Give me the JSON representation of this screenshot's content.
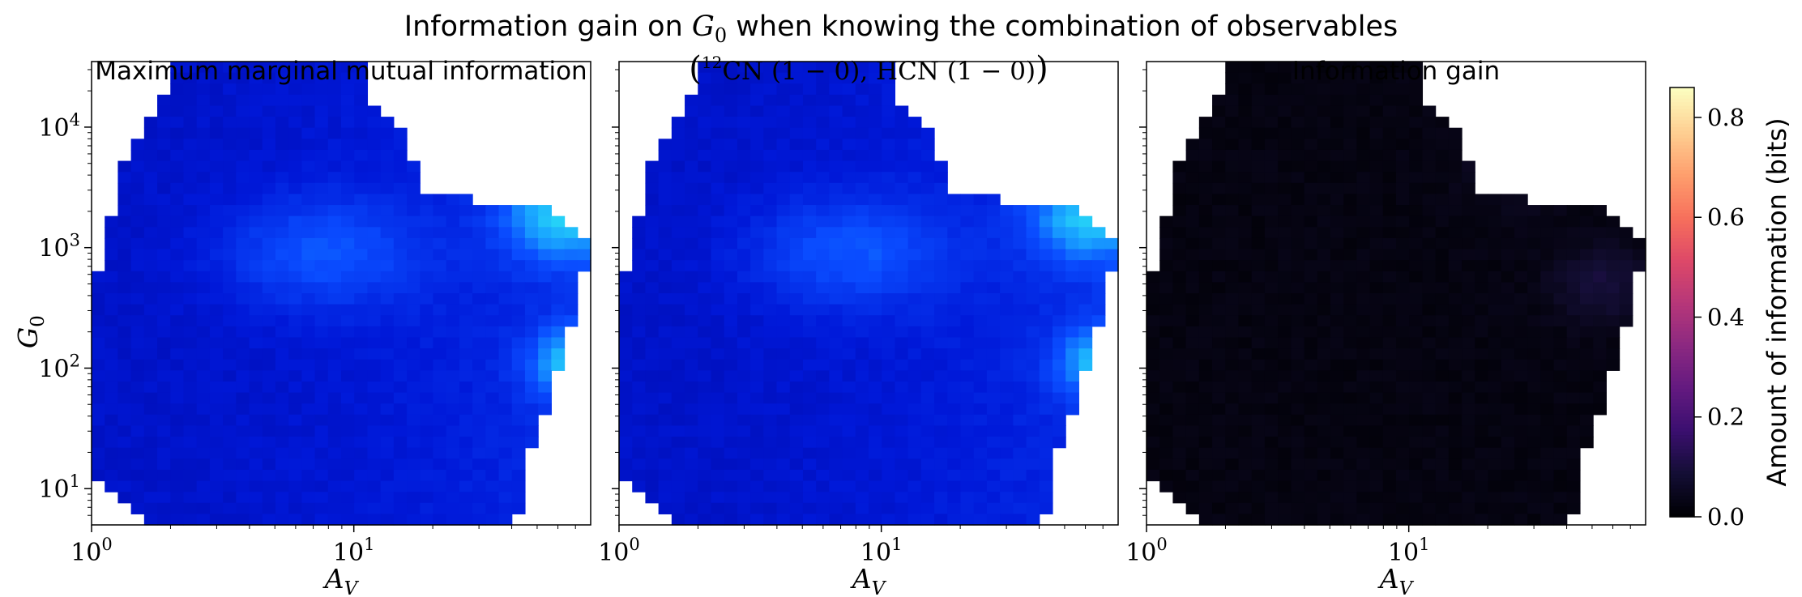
{
  "figure": {
    "suptitle": "Information gain on G0 when knowing the combination of observables"
  },
  "colors": {
    "mi_map": [
      "#00008a",
      "#0018d8",
      "#0a4cff",
      "#1aa8ff",
      "#2ef0f2"
    ],
    "gain_map": [
      "#000004",
      "#140e36",
      "#3b0f70",
      "#641a80",
      "#8c2981",
      "#b73779",
      "#de4968",
      "#f7705c",
      "#fe9f6d",
      "#fecf92",
      "#fcfdbf"
    ]
  },
  "chart_data": [
    {
      "type": "heatmap",
      "title": "Maximum marginal mutual information",
      "xlabel": "A_V",
      "ylabel": "G_0",
      "xscale": "log",
      "yscale": "log",
      "xlim": [
        1,
        80
      ],
      "ylim": [
        5,
        35000
      ],
      "xticks": [
        {
          "v": 1,
          "label": "10^0"
        },
        {
          "v": 10,
          "label": "10^1"
        }
      ],
      "yticks": [
        {
          "v": 10,
          "label": "10^1"
        },
        {
          "v": 100,
          "label": "10^2"
        },
        {
          "v": 1000,
          "label": "10^3"
        },
        {
          "v": 10000,
          "label": "10^4"
        }
      ],
      "colormap": "blue-cyan",
      "value_range": [
        0,
        0.86
      ],
      "grid": false
    },
    {
      "type": "heatmap",
      "title": "(12CN (1 − 0), HCN (1 − 0))",
      "xlabel": "A_V",
      "ylabel": "",
      "xscale": "log",
      "yscale": "log",
      "xlim": [
        1,
        80
      ],
      "ylim": [
        5,
        35000
      ],
      "xticks": [
        {
          "v": 1,
          "label": "10^0"
        },
        {
          "v": 10,
          "label": "10^1"
        }
      ],
      "colormap": "blue-cyan",
      "value_range": [
        0,
        0.86
      ],
      "grid": false
    },
    {
      "type": "heatmap",
      "title": "Information gain",
      "xlabel": "A_V",
      "ylabel": "",
      "xscale": "log",
      "yscale": "log",
      "xlim": [
        1,
        80
      ],
      "ylim": [
        5,
        35000
      ],
      "xticks": [
        {
          "v": 1,
          "label": "10^0"
        },
        {
          "v": 10,
          "label": "10^1"
        }
      ],
      "colormap": "magma",
      "value_range": [
        0,
        0.86
      ],
      "grid": false
    }
  ],
  "colorbar": {
    "label": "Amount of information (bits)",
    "range": [
      0,
      0.86
    ],
    "ticks": [
      {
        "v": 0.0,
        "label": "0.0"
      },
      {
        "v": 0.2,
        "label": "0.2"
      },
      {
        "v": 0.4,
        "label": "0.4"
      },
      {
        "v": 0.6,
        "label": "0.6"
      },
      {
        "v": 0.8,
        "label": "0.8"
      }
    ]
  }
}
